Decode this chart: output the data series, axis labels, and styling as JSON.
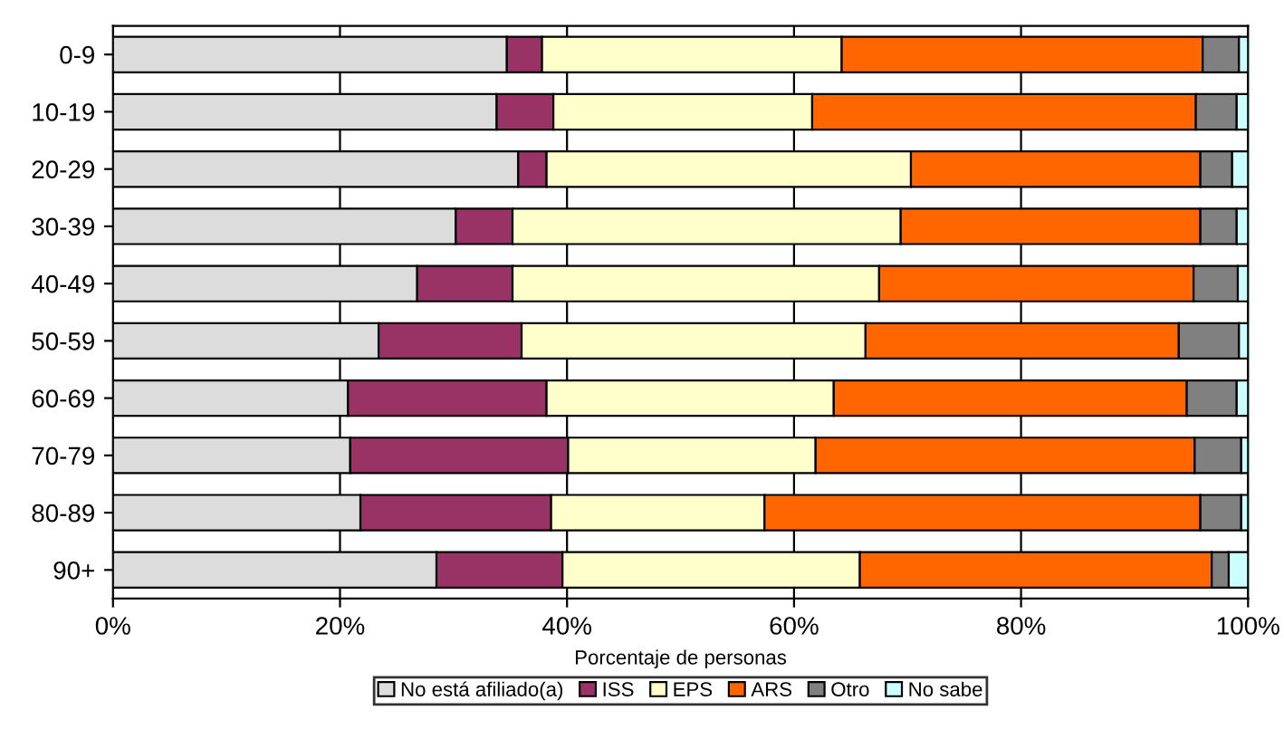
{
  "chart_data": {
    "type": "bar",
    "orientation": "horizontal",
    "stacked": true,
    "xlabel": "Porcentaje de personas",
    "categories": [
      "0-9",
      "10-19",
      "20-29",
      "30-39",
      "40-49",
      "50-59",
      "60-69",
      "70-79",
      "80-89",
      "90+"
    ],
    "series": [
      {
        "name": "No está afiliado(a)",
        "color": "#dcdcdc",
        "values": [
          34.7,
          33.8,
          35.7,
          30.2,
          26.8,
          23.4,
          20.7,
          20.9,
          21.8,
          28.5
        ]
      },
      {
        "name": "ISS",
        "color": "#993366",
        "values": [
          3.1,
          5.0,
          2.5,
          5.0,
          8.4,
          12.6,
          17.5,
          19.2,
          16.8,
          11.1
        ]
      },
      {
        "name": "EPS",
        "color": "#ffffcc",
        "values": [
          26.4,
          22.8,
          32.1,
          34.2,
          32.3,
          30.3,
          25.3,
          21.8,
          18.8,
          26.2
        ]
      },
      {
        "name": "ARS",
        "color": "#ff6600",
        "values": [
          31.8,
          33.8,
          25.5,
          26.4,
          27.7,
          27.6,
          31.1,
          33.4,
          38.4,
          31.0
        ]
      },
      {
        "name": "Otro",
        "color": "#808080",
        "values": [
          3.2,
          3.6,
          2.8,
          3.2,
          3.9,
          5.3,
          4.4,
          4.1,
          3.6,
          1.5
        ]
      },
      {
        "name": "No sabe",
        "color": "#ccffff",
        "values": [
          0.8,
          1.0,
          1.4,
          1.0,
          0.9,
          0.8,
          1.0,
          0.6,
          0.6,
          1.7
        ]
      }
    ],
    "xlim": [
      0,
      100
    ],
    "xticks": [
      {
        "value": 0,
        "label": "0%"
      },
      {
        "value": 20,
        "label": "20%"
      },
      {
        "value": 40,
        "label": "40%"
      },
      {
        "value": 60,
        "label": "60%"
      },
      {
        "value": 80,
        "label": "80%"
      },
      {
        "value": 100,
        "label": "100%"
      }
    ],
    "grid": "x",
    "legend": "bottom"
  }
}
